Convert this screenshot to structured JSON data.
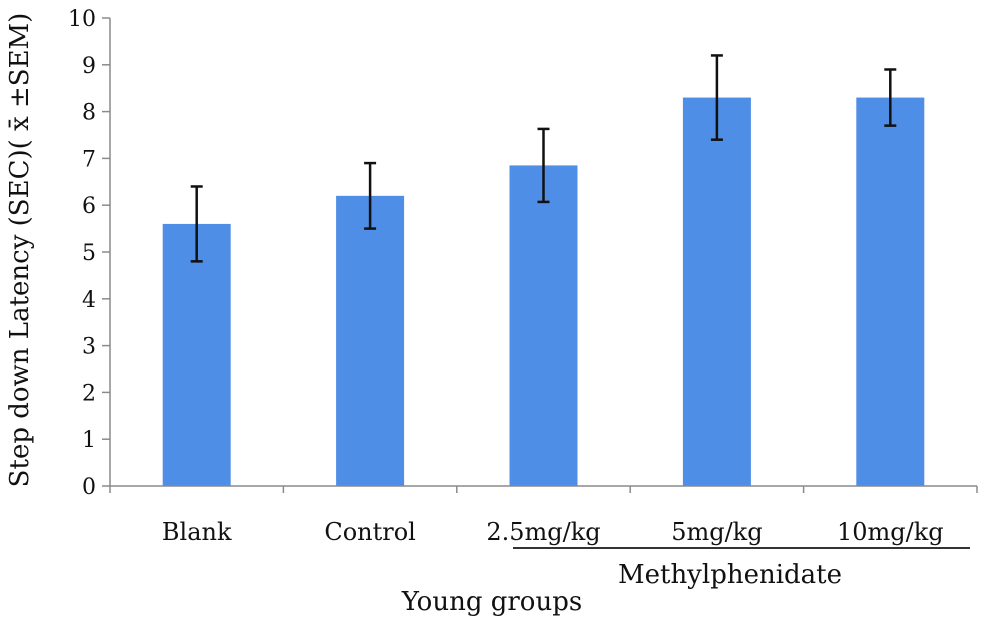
{
  "chart_data": {
    "type": "bar",
    "categories": [
      "Blank",
      "Control",
      "2.5mg/kg",
      "5mg/kg",
      "10mg/kg"
    ],
    "values": [
      5.6,
      6.2,
      6.85,
      8.3,
      8.3
    ],
    "errors": [
      0.8,
      0.7,
      0.78,
      0.9,
      0.6
    ],
    "ylabel": "Step down Latency (SEC)( x̄ ±SEM)",
    "xlabel": "Young groups",
    "group_label": "Methylphenidate",
    "group_categories": [
      "2.5mg/kg",
      "5mg/kg",
      "10mg/kg"
    ],
    "ylim": [
      0,
      10
    ],
    "yticks": [
      0,
      1,
      2,
      3,
      4,
      5,
      6,
      7,
      8,
      9,
      10
    ],
    "bar_color": "#4f8ee6",
    "error_color": "#111111",
    "grid": false,
    "legend": "none"
  }
}
